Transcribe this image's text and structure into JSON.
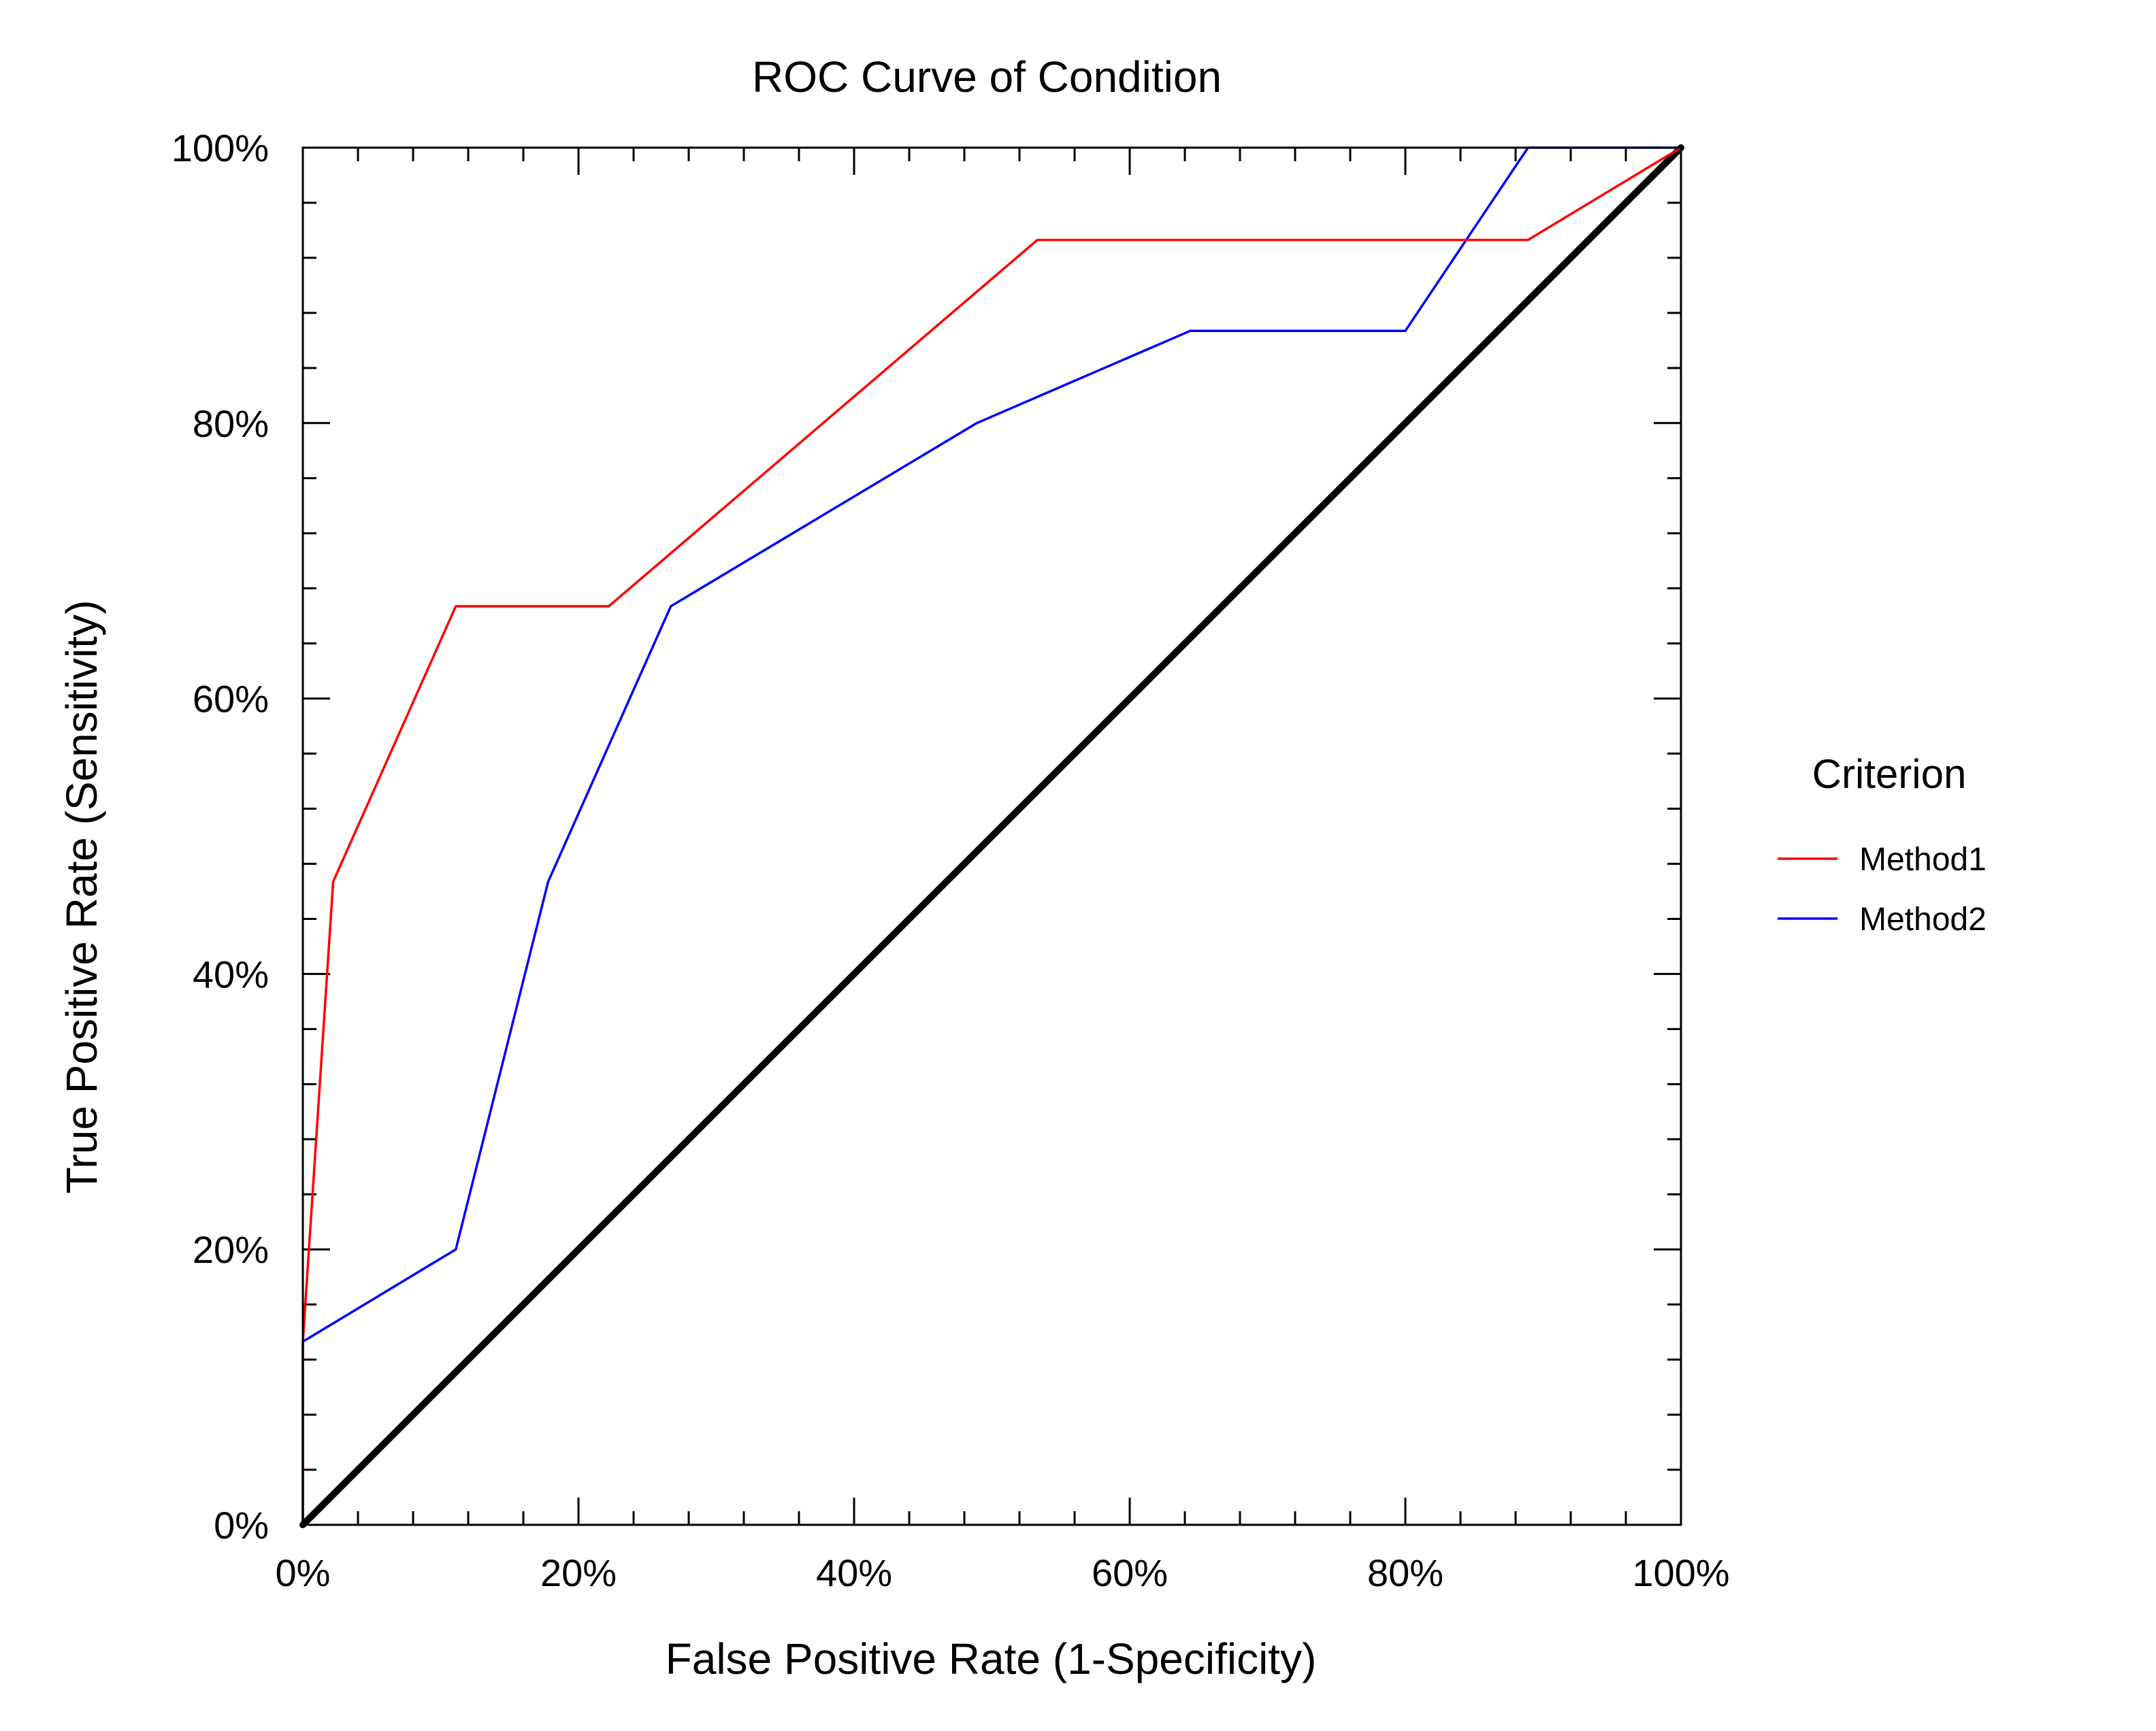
{
  "chart_data": {
    "type": "line",
    "title": "ROC Curve of Condition",
    "xlabel": "False Positive Rate (1-Specificity)",
    "ylabel": "True Positive Rate (Sensitivity)",
    "xlim": [
      0,
      1
    ],
    "ylim": [
      0,
      1
    ],
    "x_ticks": [
      "0%",
      "20%",
      "40%",
      "60%",
      "80%",
      "100%"
    ],
    "y_ticks": [
      "0%",
      "20%",
      "40%",
      "60%",
      "80%",
      "100%"
    ],
    "grid": false,
    "legend": {
      "title": "Criterion",
      "placement": "right"
    },
    "series": [
      {
        "name": "Method1",
        "color": "#ff0000",
        "points": [
          [
            0,
            0
          ],
          [
            0,
            0.133
          ],
          [
            0.022,
            0.467
          ],
          [
            0.111,
            0.667
          ],
          [
            0.222,
            0.667
          ],
          [
            0.533,
            0.933
          ],
          [
            0.889,
            0.933
          ],
          [
            1,
            1
          ]
        ]
      },
      {
        "name": "Method2",
        "color": "#0000ff",
        "points": [
          [
            0,
            0
          ],
          [
            0,
            0.133
          ],
          [
            0.111,
            0.2
          ],
          [
            0.178,
            0.467
          ],
          [
            0.267,
            0.667
          ],
          [
            0.489,
            0.8
          ],
          [
            0.644,
            0.867
          ],
          [
            0.8,
            0.867
          ],
          [
            0.889,
            1
          ],
          [
            1,
            1
          ]
        ]
      }
    ],
    "reference_line": {
      "color": "#000000",
      "points": [
        [
          0,
          0
        ],
        [
          1,
          1
        ]
      ]
    }
  }
}
